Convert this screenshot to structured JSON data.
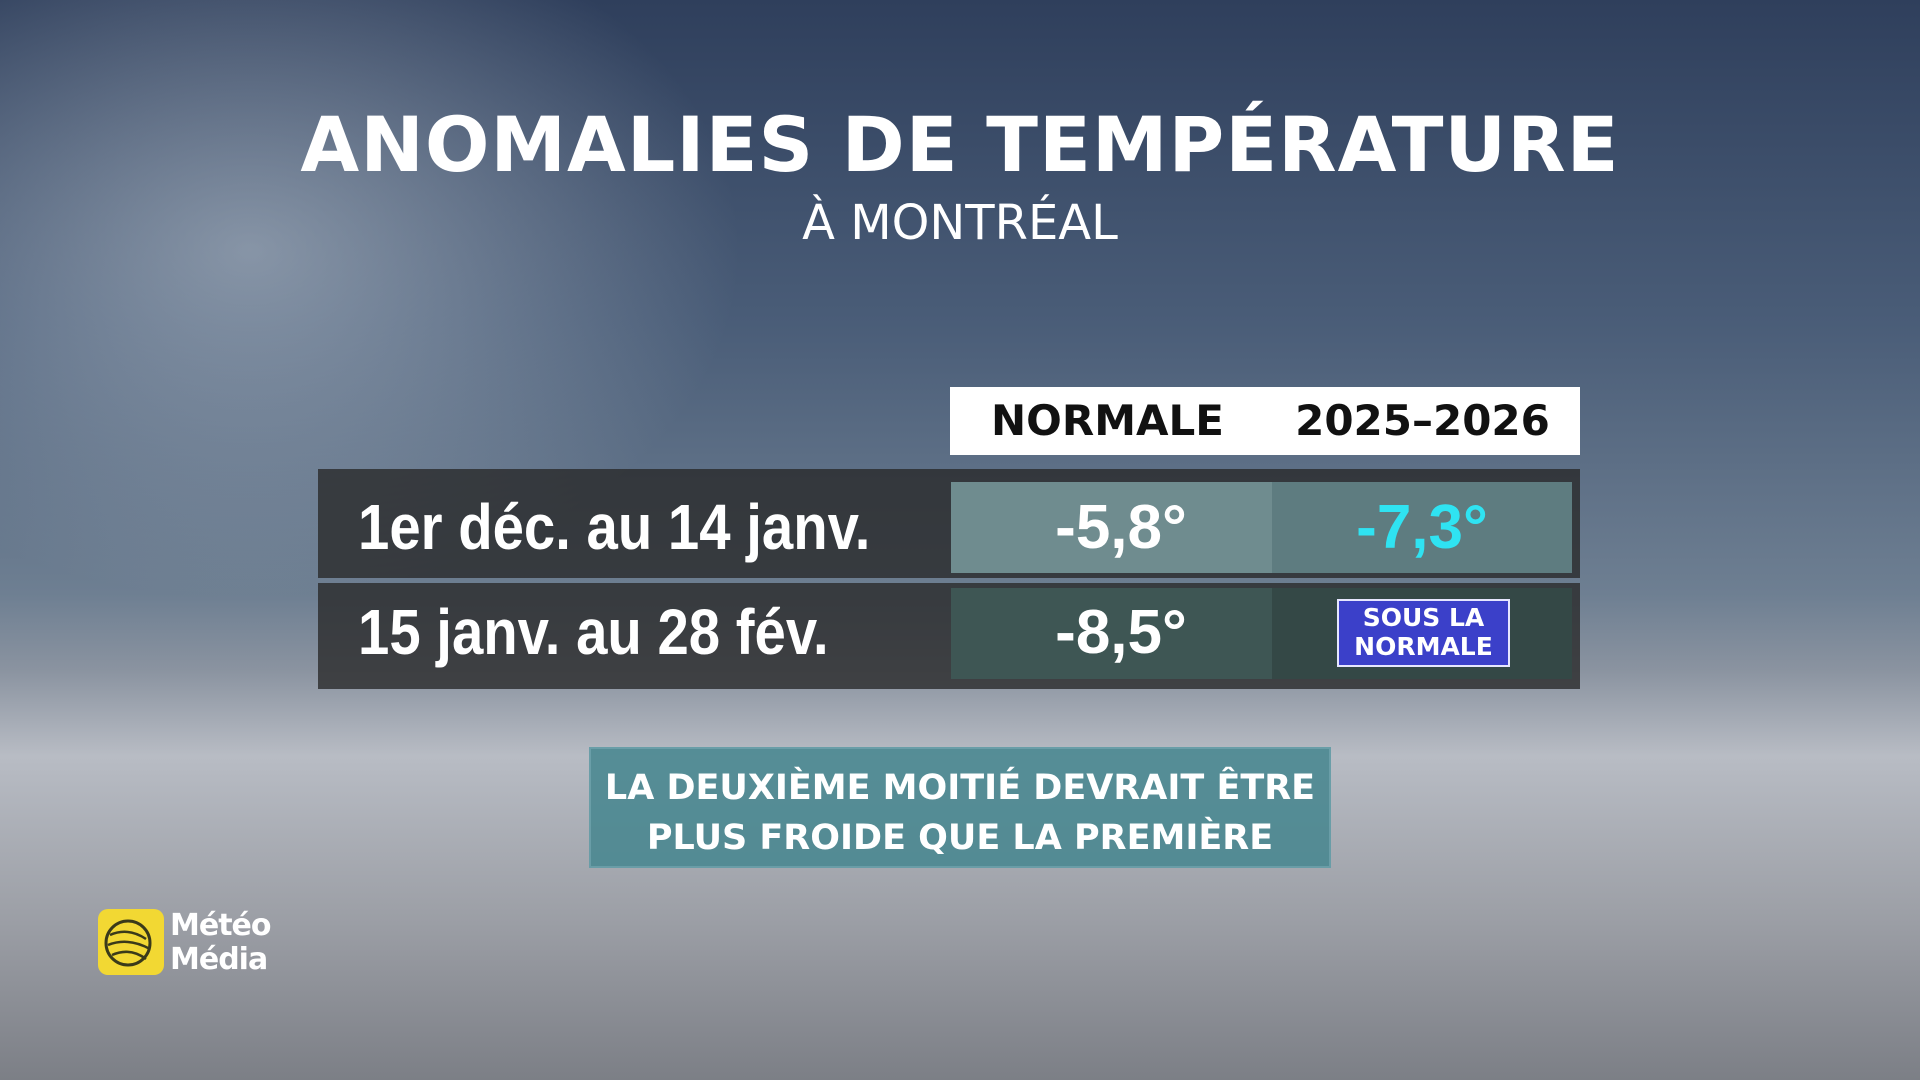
{
  "header": {
    "title": "ANOMALIES DE TEMPÉRATURE",
    "subtitle": "À MONTRÉAL"
  },
  "table": {
    "columns": [
      "NORMALE",
      "2025–2026"
    ],
    "rows": [
      {
        "label": "1er déc. au 14 janv.",
        "normale": "-5,8°",
        "current": "-7,3°"
      },
      {
        "label": "15 janv. au 28 fév.",
        "normale": "-8,5°",
        "current": "SOUS LA NORMALE"
      }
    ]
  },
  "note": {
    "lines": [
      "LA DEUXIÈME MOITIÉ DEVRAIT ÊTRE",
      "PLUS FROIDE QUE LA PREMIÈRE"
    ]
  },
  "logo": {
    "lines": [
      "Météo",
      "Média"
    ]
  }
}
